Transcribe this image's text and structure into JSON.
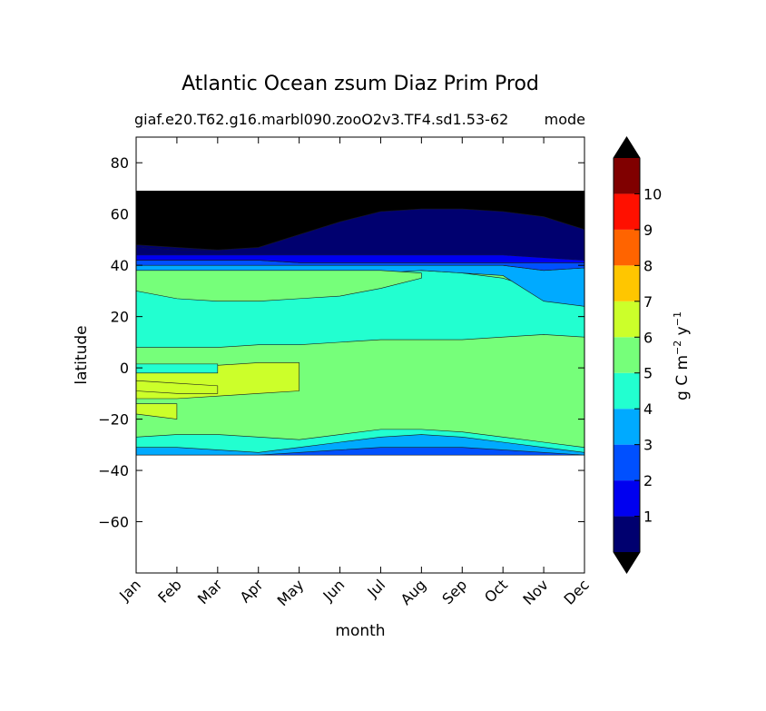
{
  "chart_data": {
    "type": "heatmap",
    "title": "Atlantic Ocean zsum Diaz Prim Prod",
    "subtitle_left": "giaf.e20.T62.g16.marbl090.zooO2v3.TF4.sd1.53-62",
    "subtitle_right": "mode",
    "xlabel": "month",
    "ylabel": "latitude",
    "x_ticks": [
      "Jan",
      "Feb",
      "Mar",
      "Apr",
      "May",
      "Jun",
      "Jul",
      "Aug",
      "Sep",
      "Oct",
      "Nov",
      "Dec"
    ],
    "y_ticks": [
      -60,
      -40,
      -20,
      0,
      20,
      40,
      60,
      80
    ],
    "ylim": [
      -80,
      90
    ],
    "data_lat_range": [
      -34,
      69
    ],
    "colorbar": {
      "label_text": "g C m",
      "label_sup1": "−2",
      "label_mid": " y",
      "label_sup2": "−1",
      "ticks": [
        1,
        2,
        3,
        4,
        5,
        6,
        7,
        8,
        9,
        10
      ],
      "levels": [
        0,
        1,
        2,
        3,
        4,
        5,
        6,
        7,
        8,
        9,
        10,
        11
      ],
      "colors": [
        "#00006f",
        "#0000f0",
        "#0050ff",
        "#00aaff",
        "#22ffd0",
        "#76ff7a",
        "#ccff2a",
        "#ffc600",
        "#ff6400",
        "#ff1000",
        "#800000"
      ],
      "extend": "both",
      "under_color": "#000000",
      "over_color": "#000000"
    },
    "bands": [
      {
        "level": "4-5",
        "north": [
          36,
          35.5,
          35,
          36,
          37,
          37.5,
          38,
          38,
          37,
          35,
          30,
          28
        ],
        "south": [
          8,
          8,
          8,
          9,
          9,
          10,
          11,
          11,
          11,
          12,
          13,
          12
        ]
      },
      {
        "level": "5-6 north",
        "north": [
          18,
          16,
          15,
          15,
          16,
          17,
          18,
          18,
          17,
          15,
          15,
          14
        ],
        "south": [
          -12,
          -12,
          -12,
          -11,
          -10,
          -9,
          -8,
          -8,
          -9,
          -12,
          -17,
          -20
        ]
      },
      {
        "level": "5-6 subtropical high",
        "north": [
          24,
          24,
          26,
          31,
          35,
          38,
          39,
          39,
          38,
          36,
          33,
          29
        ],
        "south": [
          23,
          23,
          23,
          24,
          26,
          27,
          28,
          29,
          30,
          31,
          30,
          28
        ]
      },
      {
        "level": "6-7 equatorial",
        "north": [
          -1,
          0,
          1,
          2,
          2,
          1,
          0,
          -2,
          -4,
          -5,
          -6,
          -7
        ],
        "south": [
          -12,
          -12,
          -11,
          -10,
          -9,
          -8,
          -7,
          -6,
          -6,
          -7,
          -8,
          -9
        ]
      },
      {
        "level": "6-7 southern",
        "north": [
          -14,
          -14,
          -15,
          -16,
          -17,
          -17,
          -17,
          -17,
          -16,
          -15,
          -14,
          -14
        ],
        "south": [
          -18,
          -20,
          -21,
          -21,
          -21,
          -21,
          -21,
          -21,
          -21,
          -21,
          -21,
          -21
        ]
      },
      {
        "level": "4-5 equatorial patch",
        "north": [
          1,
          1.5,
          1.5,
          1.5,
          1.5,
          1.5,
          1.5,
          1.5,
          1.5,
          1,
          1,
          1
        ],
        "south": [
          -1,
          -1.5,
          -2,
          -2,
          -2,
          -2,
          -2,
          -2,
          -2,
          -1.5,
          -1,
          -1
        ]
      },
      {
        "level": "0-1 north",
        "north": [
          69,
          69,
          69,
          69,
          69,
          69,
          69,
          69,
          69,
          69,
          69,
          69
        ],
        "south": [
          47,
          46,
          46,
          47,
          52,
          57,
          61,
          62,
          62,
          61,
          59,
          54
        ]
      }
    ]
  }
}
